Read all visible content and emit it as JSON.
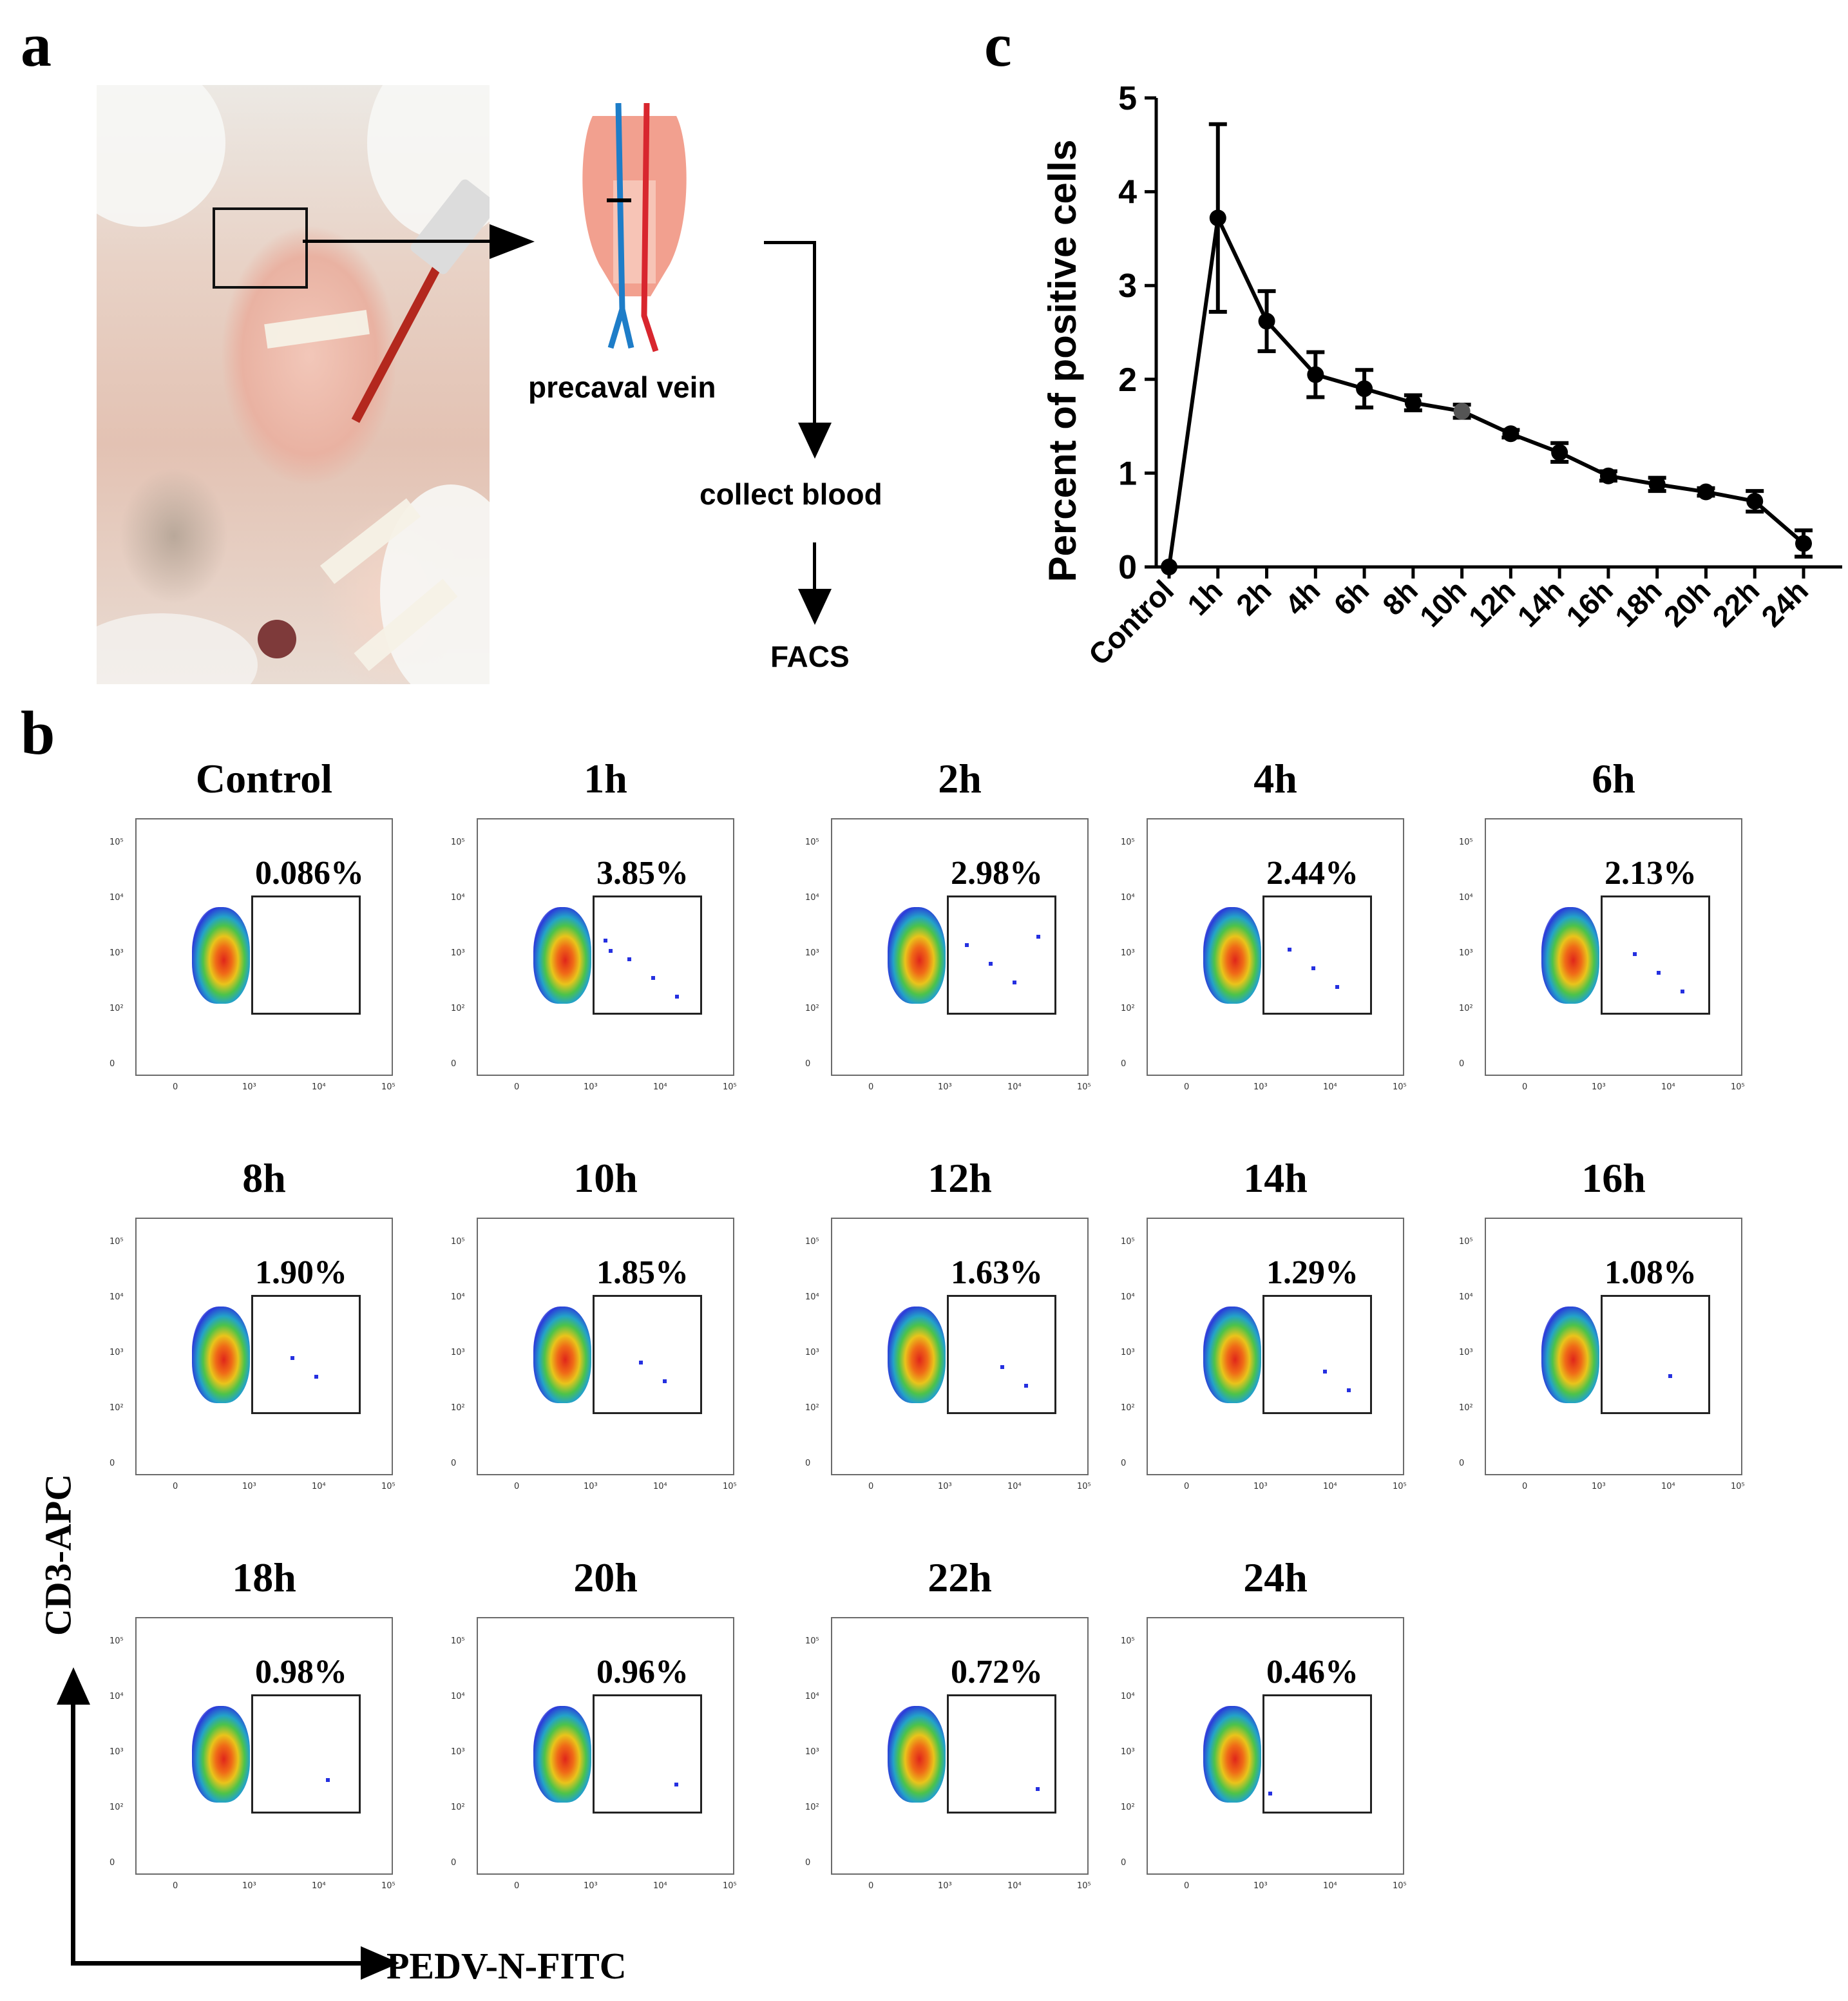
{
  "panel_labels": {
    "a": "a",
    "b": "b",
    "c": "c"
  },
  "schematic": {
    "vessel_label": "precaval vein",
    "step1": "collect blood",
    "step2": "FACS"
  },
  "facs_axes": {
    "y_label": "CD3-APC",
    "x_label": "PEDV-N-FITC"
  },
  "facs_tick_labels": {
    "y": [
      "10⁵",
      "10⁴",
      "10³",
      "10²",
      "0"
    ],
    "x": [
      "0",
      "10³",
      "10⁴",
      "10⁵"
    ]
  },
  "facs_panels": [
    {
      "title": "Control",
      "percent": "0.086%"
    },
    {
      "title": "1h",
      "percent": "3.85%"
    },
    {
      "title": "2h",
      "percent": "2.98%"
    },
    {
      "title": "4h",
      "percent": "2.44%"
    },
    {
      "title": "6h",
      "percent": "2.13%"
    },
    {
      "title": "8h",
      "percent": "1.90%"
    },
    {
      "title": "10h",
      "percent": "1.85%"
    },
    {
      "title": "12h",
      "percent": "1.63%"
    },
    {
      "title": "14h",
      "percent": "1.29%"
    },
    {
      "title": "16h",
      "percent": "1.08%"
    },
    {
      "title": "18h",
      "percent": "0.98%"
    },
    {
      "title": "20h",
      "percent": "0.96%"
    },
    {
      "title": "22h",
      "percent": "0.72%"
    },
    {
      "title": "24h",
      "percent": "0.46%"
    }
  ],
  "chart_data": {
    "type": "line",
    "title": "",
    "xlabel": "",
    "ylabel": "Percent of positive cells",
    "categories": [
      "Control",
      "1h",
      "2h",
      "4h",
      "6h",
      "8h",
      "10h",
      "12h",
      "14h",
      "16h",
      "18h",
      "20h",
      "22h",
      "24h"
    ],
    "series": [
      {
        "values": [
          0,
          3.72,
          2.62,
          2.05,
          1.9,
          1.75,
          1.66,
          1.42,
          1.22,
          0.97,
          0.88,
          0.8,
          0.7,
          0.25
        ],
        "error": [
          0,
          1.0,
          0.32,
          0.24,
          0.2,
          0.08,
          0.07,
          0.04,
          0.1,
          0.05,
          0.07,
          0.04,
          0.11,
          0.14
        ]
      }
    ],
    "ylim": [
      0,
      5
    ],
    "yticks": [
      "0",
      "1",
      "2",
      "3",
      "4",
      "5"
    ],
    "grid": false
  }
}
